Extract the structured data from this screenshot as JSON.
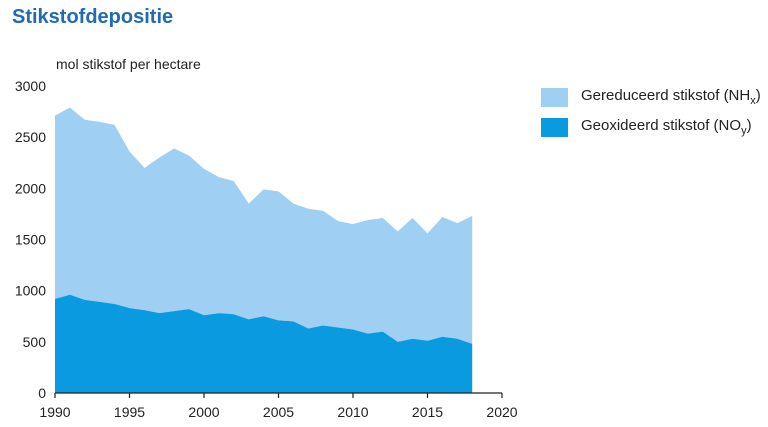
{
  "title": "Stikstofdepositie",
  "colors": {
    "nh_fill": "#9fcff3",
    "no_fill": "#0a9ae0",
    "title": "#1f6bb5",
    "axis": "#222222"
  },
  "legend": [
    {
      "main": "Gereduceerd stikstof (NH",
      "sub": "x",
      "close": ")",
      "color": "#9fcff3"
    },
    {
      "main": "Geoxideerd stikstof (NO",
      "sub": "y",
      "close": ")",
      "color": "#0a9ae0"
    }
  ],
  "chart_data": {
    "type": "area",
    "stacked": true,
    "title": "Stikstofdepositie",
    "ylabel": "mol stikstof per hectare",
    "xlabel": "",
    "xlim": [
      1990,
      2020
    ],
    "ylim": [
      0,
      3000
    ],
    "xticks": [
      1990,
      1995,
      2000,
      2005,
      2010,
      2015,
      2020
    ],
    "yticks": [
      0,
      500,
      1000,
      1500,
      2000,
      2500,
      3000
    ],
    "grid": false,
    "legend_position": "top-right",
    "x": [
      1990,
      1991,
      1992,
      1993,
      1994,
      1995,
      1996,
      1997,
      1998,
      1999,
      2000,
      2001,
      2002,
      2003,
      2004,
      2005,
      2006,
      2007,
      2008,
      2009,
      2010,
      2011,
      2012,
      2013,
      2014,
      2015,
      2016,
      2017,
      2018
    ],
    "series": [
      {
        "name": "Geoxideerd stikstof (NOy)",
        "role": "bottom",
        "values": [
          920,
          960,
          910,
          890,
          870,
          830,
          810,
          780,
          800,
          820,
          760,
          780,
          770,
          720,
          750,
          710,
          700,
          630,
          660,
          640,
          620,
          580,
          600,
          500,
          530,
          510,
          550,
          530,
          480
        ]
      },
      {
        "name": "Gereduceerd stikstof (NHx)",
        "role": "top",
        "values": [
          1790,
          1830,
          1760,
          1760,
          1750,
          1530,
          1390,
          1520,
          1590,
          1500,
          1430,
          1330,
          1300,
          1130,
          1240,
          1260,
          1150,
          1170,
          1120,
          1040,
          1030,
          1110,
          1110,
          1080,
          1180,
          1050,
          1170,
          1130,
          1250
        ]
      }
    ]
  }
}
